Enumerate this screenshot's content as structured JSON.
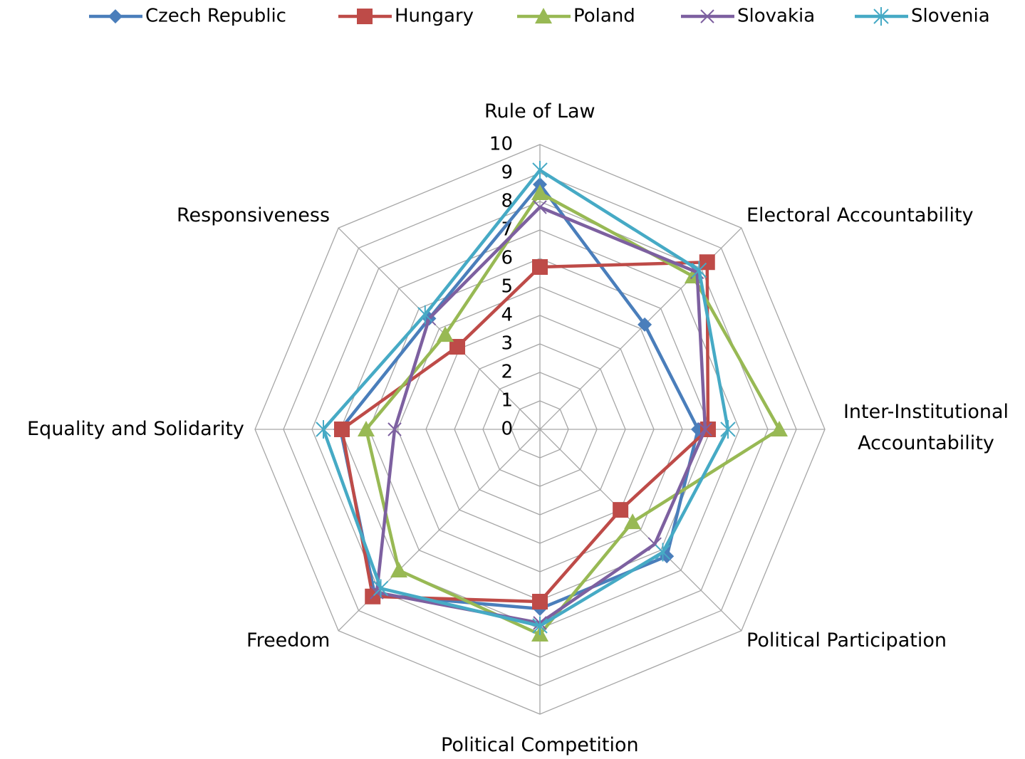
{
  "chart_data": {
    "type": "radar",
    "categories": [
      "Rule of Law",
      "Electoral Accountability",
      "Inter-Institutional Accountability",
      "Political Participation",
      "Political Competition",
      "Freedom",
      "Equality and Solidarity",
      "Responsiveness"
    ],
    "series": [
      {
        "name": "Czech Republic",
        "color": "#4a7ebb",
        "marker": "diamond",
        "values": [
          8.6,
          5.2,
          5.55,
          6.3,
          6.3,
          8.2,
          7.0,
          5.5
        ]
      },
      {
        "name": "Hungary",
        "color": "#be4b48",
        "marker": "square",
        "values": [
          5.7,
          8.3,
          5.9,
          4.0,
          6.05,
          8.3,
          6.95,
          4.1
        ]
      },
      {
        "name": "Poland",
        "color": "#98b954",
        "marker": "triangle",
        "values": [
          8.3,
          7.6,
          8.4,
          4.6,
          7.2,
          7.0,
          6.1,
          4.7
        ]
      },
      {
        "name": "Slovakia",
        "color": "#7d60a0",
        "marker": "x",
        "values": [
          7.8,
          7.8,
          5.8,
          5.7,
          6.8,
          8.1,
          5.1,
          5.5
        ]
      },
      {
        "name": "Slovenia",
        "color": "#46aac5",
        "marker": "star",
        "values": [
          9.1,
          7.9,
          6.6,
          6.1,
          6.9,
          7.9,
          7.6,
          5.7
        ]
      }
    ],
    "ylim": [
      0,
      10
    ],
    "yticks": [
      0,
      1,
      2,
      3,
      4,
      5,
      6,
      7,
      8,
      9,
      10
    ],
    "grid": true,
    "legend": "top"
  }
}
